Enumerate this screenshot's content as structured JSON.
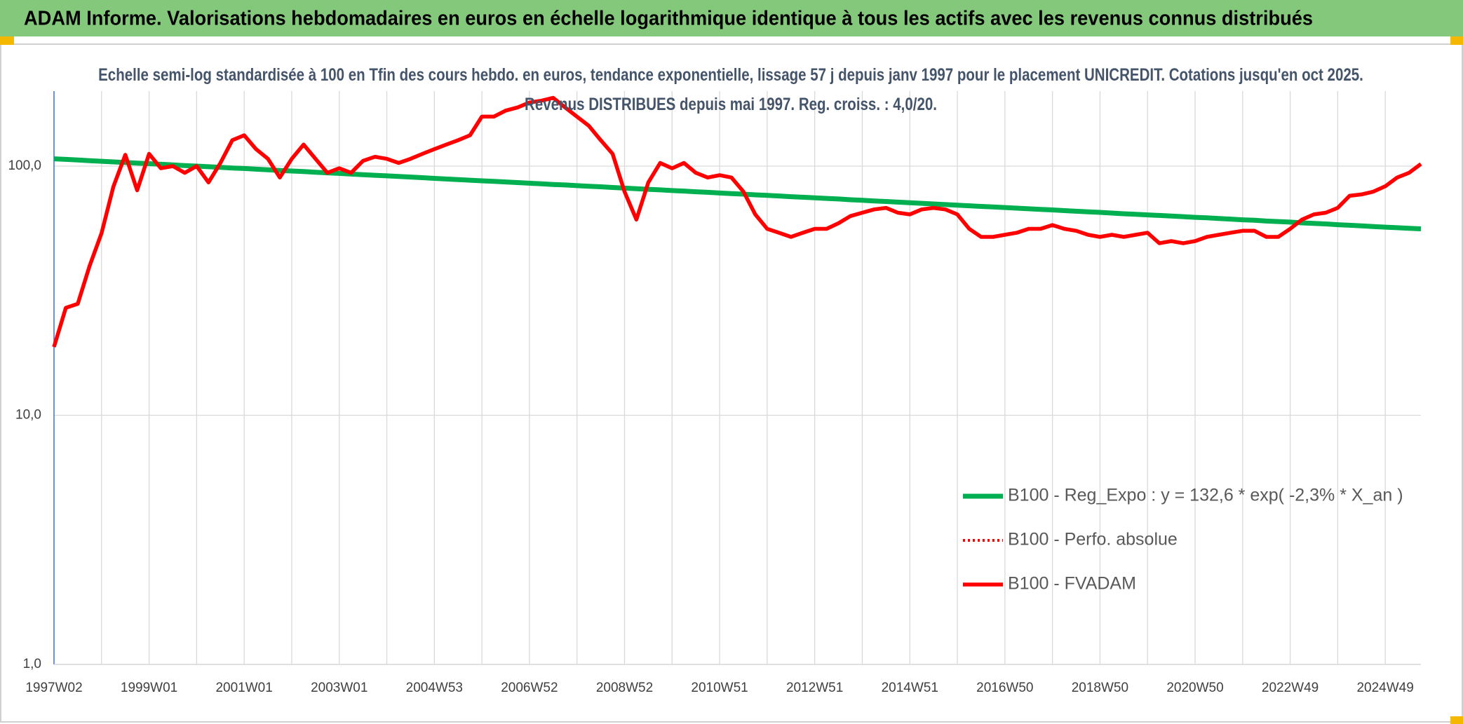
{
  "chart_data": {
    "type": "line",
    "title": "ADAM Informe. Valorisations hebdomadaires en euros en échelle logarithmique identique à tous les actifs avec les revenus connus distribués",
    "subtitle": "Echelle semi-log standardisée à 100 en Tfin des cours hebdo. en euros, tendance exponentielle, lissage 57 j depuis janv 1997 pour le placement UNICREDIT. Cotations jusqu'en oct 2025. Revenus DISTRIBUES depuis mai 1997. Reg. croiss. : 4,0/20.",
    "log_scale": true,
    "grid": true,
    "legend": "right",
    "ylim": [
      1,
      200
    ],
    "yticks": [
      {
        "value": 1,
        "label": "1,0"
      },
      {
        "value": 10,
        "label": "10,0"
      },
      {
        "value": 100,
        "label": "100,0"
      }
    ],
    "categories": [
      "1997W02",
      null,
      null,
      null,
      null,
      null,
      null,
      null,
      "1999W01",
      null,
      null,
      null,
      null,
      null,
      null,
      null,
      "2001W01",
      null,
      null,
      null,
      null,
      null,
      null,
      null,
      "2003W01",
      null,
      null,
      null,
      null,
      null,
      null,
      null,
      "2004W53",
      null,
      null,
      null,
      null,
      null,
      null,
      null,
      "2006W52",
      null,
      null,
      null,
      null,
      null,
      null,
      null,
      "2008W52",
      null,
      null,
      null,
      null,
      null,
      null,
      null,
      "2010W51",
      null,
      null,
      null,
      null,
      null,
      null,
      null,
      "2012W51",
      null,
      null,
      null,
      null,
      null,
      null,
      null,
      "2014W51",
      null,
      null,
      null,
      null,
      null,
      null,
      null,
      "2016W50",
      null,
      null,
      null,
      null,
      null,
      null,
      null,
      "2018W50",
      null,
      null,
      null,
      null,
      null,
      null,
      null,
      "2020W50",
      null,
      null,
      null,
      null,
      null,
      null,
      null,
      "2022W49",
      null,
      null,
      null,
      null,
      null,
      null,
      null,
      "2024W49",
      null,
      null,
      null
    ],
    "series": [
      {
        "name": "B100 - Reg_Expo : y = 132,6 * exp( -2,3% *  X_an )",
        "color": "#00b050",
        "style": "solid",
        "values": [
          107.0,
          106.4,
          105.8,
          105.2,
          104.6,
          104.0,
          103.4,
          102.8,
          102.3,
          101.7,
          101.1,
          100.5,
          100.0,
          99.4,
          98.9,
          98.3,
          97.8,
          97.2,
          96.7,
          96.1,
          95.6,
          95.1,
          94.5,
          94.0,
          93.5,
          92.9,
          92.4,
          91.9,
          91.4,
          90.9,
          90.4,
          89.9,
          89.3,
          88.8,
          88.3,
          87.8,
          87.3,
          86.9,
          86.4,
          85.9,
          85.4,
          84.9,
          84.4,
          84.0,
          83.5,
          83.0,
          82.6,
          82.1,
          81.6,
          81.2,
          80.7,
          80.3,
          79.8,
          79.4,
          78.9,
          78.5,
          78.0,
          77.6,
          77.2,
          76.7,
          76.3,
          75.9,
          75.4,
          75.0,
          74.6,
          74.2,
          73.8,
          73.3,
          72.9,
          72.5,
          72.1,
          71.7,
          71.3,
          70.9,
          70.5,
          70.1,
          69.7,
          69.3,
          68.9,
          68.6,
          68.2,
          67.8,
          67.4,
          67.0,
          66.7,
          66.3,
          65.9,
          65.5,
          65.2,
          64.8,
          64.4,
          64.1,
          63.7,
          63.4,
          63.0,
          62.7,
          62.3,
          62.0,
          61.6,
          61.3,
          60.9,
          60.6,
          60.2,
          59.9,
          59.6,
          59.2,
          58.9,
          58.6,
          58.2,
          57.9,
          57.6,
          57.2,
          56.9,
          56.6,
          56.3,
          56.0
        ]
      },
      {
        "name": "B100 - Perfo. absolue",
        "color": "#ff0000",
        "style": "dotted",
        "values": [
          18.8,
          27,
          28,
          39.8,
          53.8,
          82.7,
          111,
          80,
          112,
          98,
          100,
          94,
          100,
          86,
          103,
          127,
          133,
          117,
          107,
          90,
          107,
          122,
          107,
          94,
          98,
          94,
          105,
          109,
          107,
          103,
          107,
          112,
          117,
          122,
          127,
          133,
          158,
          158,
          167,
          172,
          180,
          183,
          188,
          172,
          158,
          145,
          127,
          112,
          79,
          61,
          86,
          103,
          98,
          103,
          94,
          90,
          92,
          90,
          79,
          64,
          56,
          54,
          52,
          54,
          56,
          56,
          59,
          63,
          65,
          67,
          68,
          65,
          64,
          67,
          68,
          67,
          64,
          56,
          52,
          52,
          53,
          54,
          56,
          56,
          58,
          56,
          55,
          53,
          52,
          53,
          52,
          53,
          54,
          49,
          50,
          49,
          50,
          52,
          53,
          54,
          55,
          55,
          52,
          52,
          56,
          61,
          64,
          65,
          68,
          76,
          77,
          79,
          83,
          90,
          94,
          102
        ]
      },
      {
        "name": "B100 - FVADAM",
        "color": "#ff0000",
        "style": "solid",
        "values": [
          18.8,
          27,
          28,
          39.8,
          53.8,
          82.7,
          111,
          80,
          112,
          98,
          100,
          94,
          100,
          86,
          103,
          127,
          133,
          117,
          107,
          90,
          107,
          122,
          107,
          94,
          98,
          94,
          105,
          109,
          107,
          103,
          107,
          112,
          117,
          122,
          127,
          133,
          158,
          158,
          167,
          172,
          180,
          183,
          188,
          172,
          158,
          145,
          127,
          112,
          79,
          61,
          86,
          103,
          98,
          103,
          94,
          90,
          92,
          90,
          79,
          64,
          56,
          54,
          52,
          54,
          56,
          56,
          59,
          63,
          65,
          67,
          68,
          65,
          64,
          67,
          68,
          67,
          64,
          56,
          52,
          52,
          53,
          54,
          56,
          56,
          58,
          56,
          55,
          53,
          52,
          53,
          52,
          53,
          54,
          49,
          50,
          49,
          50,
          52,
          53,
          54,
          55,
          55,
          52,
          52,
          56,
          61,
          64,
          65,
          68,
          76,
          77,
          79,
          83,
          90,
          94,
          102
        ]
      }
    ]
  }
}
